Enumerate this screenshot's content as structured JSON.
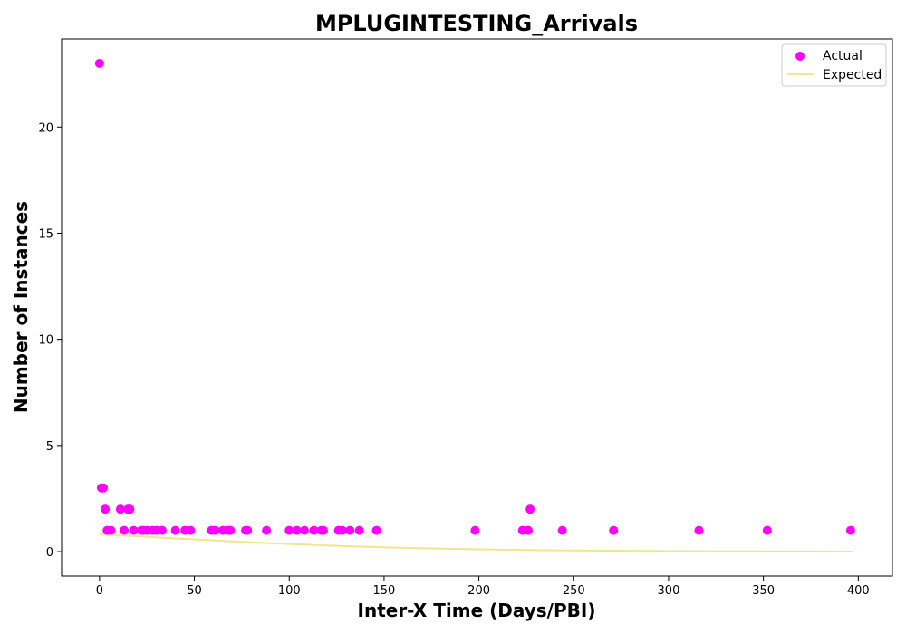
{
  "chart_data": {
    "type": "scatter",
    "title": "MPLUGINTESTING_Arrivals",
    "xlabel": "Inter-X Time (Days/PBI)",
    "ylabel": "Number of Instances",
    "xlim": [
      -20,
      418
    ],
    "ylim": [
      -1.15,
      24.15
    ],
    "xticks": [
      0,
      50,
      100,
      150,
      200,
      250,
      300,
      350,
      400
    ],
    "yticks": [
      0,
      5,
      10,
      15,
      20
    ],
    "grid": false,
    "legend_position": "top-right",
    "colors": {
      "actual": "#ff00ff",
      "expected": "#f0e68c"
    },
    "series": [
      {
        "name": "Actual",
        "kind": "scatter",
        "points": [
          [
            0,
            23
          ],
          [
            1,
            3
          ],
          [
            2,
            3
          ],
          [
            3,
            2
          ],
          [
            4,
            1
          ],
          [
            6,
            1
          ],
          [
            11,
            2
          ],
          [
            13,
            1
          ],
          [
            15,
            2
          ],
          [
            16,
            2
          ],
          [
            18,
            1
          ],
          [
            22,
            1
          ],
          [
            23,
            1
          ],
          [
            25,
            1
          ],
          [
            28,
            1
          ],
          [
            30,
            1
          ],
          [
            33,
            1
          ],
          [
            40,
            1
          ],
          [
            45,
            1
          ],
          [
            48,
            1
          ],
          [
            59,
            1
          ],
          [
            61,
            1
          ],
          [
            65,
            1
          ],
          [
            68,
            1
          ],
          [
            69,
            1
          ],
          [
            77,
            1
          ],
          [
            78,
            1
          ],
          [
            88,
            1
          ],
          [
            100,
            1
          ],
          [
            104,
            1
          ],
          [
            108,
            1
          ],
          [
            113,
            1
          ],
          [
            117,
            1
          ],
          [
            118,
            1
          ],
          [
            126,
            1
          ],
          [
            128,
            1
          ],
          [
            132,
            1
          ],
          [
            137,
            1
          ],
          [
            146,
            1
          ],
          [
            198,
            1
          ],
          [
            223,
            1
          ],
          [
            226,
            1
          ],
          [
            227,
            2
          ],
          [
            244,
            1
          ],
          [
            271,
            1
          ],
          [
            316,
            1
          ],
          [
            352,
            1
          ],
          [
            396,
            1
          ]
        ]
      },
      {
        "name": "Expected",
        "kind": "line",
        "points": [
          [
            0,
            0.82
          ],
          [
            20,
            0.72
          ],
          [
            40,
            0.62
          ],
          [
            60,
            0.53
          ],
          [
            80,
            0.44
          ],
          [
            100,
            0.36
          ],
          [
            120,
            0.29
          ],
          [
            140,
            0.23
          ],
          [
            160,
            0.18
          ],
          [
            180,
            0.14
          ],
          [
            200,
            0.11
          ],
          [
            220,
            0.08
          ],
          [
            240,
            0.06
          ],
          [
            260,
            0.05
          ],
          [
            280,
            0.04
          ],
          [
            300,
            0.03
          ],
          [
            320,
            0.02
          ],
          [
            340,
            0.02
          ],
          [
            360,
            0.01
          ],
          [
            380,
            0.01
          ],
          [
            397,
            0.0
          ]
        ]
      }
    ]
  }
}
